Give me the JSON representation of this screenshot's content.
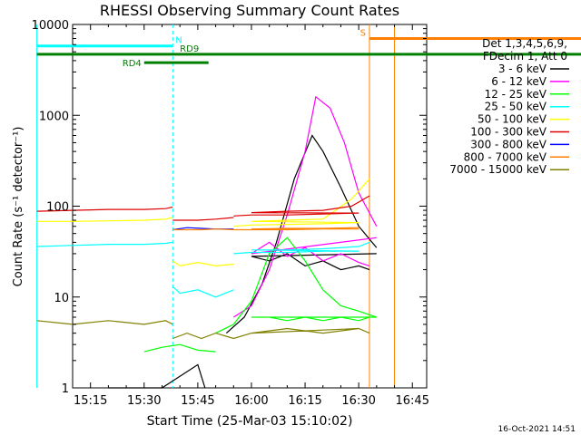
{
  "chart_data": {
    "type": "line",
    "title": "RHESSI Observing Summary Count Rates",
    "xlabel": "Start Time (25-Mar-03 15:10:02)",
    "ylabel": "Count Rate (s⁻¹ detector⁻¹)",
    "y_scale": "log",
    "ylim": [
      1,
      10000
    ],
    "xlim": [
      "15:10",
      "16:49"
    ],
    "x_ticks": [
      "15:15",
      "15:30",
      "15:45",
      "16:00",
      "16:15",
      "16:30",
      "16:45"
    ],
    "y_ticks": [
      "1",
      "10",
      "100",
      "1000",
      "10000"
    ],
    "grid": false,
    "legend_placement": "right",
    "legend_header": [
      "Det 1,3,4,5,6,9,",
      "FDecim 1, Att 0"
    ],
    "series": [
      {
        "name": "3 - 6 keV",
        "color": "#000000",
        "segments": [
          {
            "t": [
              15.2,
              15.35,
              15.45,
              15.47
            ],
            "y": [
              1,
              1,
              1.8,
              1
            ]
          },
          {
            "t": [
              15.53,
              15.58,
              15.63,
              15.67,
              15.72,
              15.77,
              15.8,
              15.85,
              15.9,
              15.95
            ],
            "y": [
              4,
              6,
              14,
              40,
              200,
              600,
              400,
              160,
              60,
              35
            ]
          },
          {
            "t": [
              15.95,
              16.0,
              16.05,
              16.1,
              16.15,
              16.2,
              16.25,
              16.3,
              16.33
            ],
            "y": [
              30,
              28,
              25,
              30,
              22,
              25,
              20,
              22,
              20
            ]
          },
          {
            "t": [
              27.0,
              27.2,
              27.4,
              27.6,
              27.8,
              28.0,
              28.2,
              28.4,
              28.6,
              28.8,
              29.0
            ],
            "y": [
              11,
              12,
              10,
              13,
              18,
              60,
              500,
              200,
              40,
              5,
              1
            ]
          }
        ]
      },
      {
        "name": "6 - 12 keV",
        "color": "#ff00ff",
        "segments": [
          {
            "t": [
              15.55,
              15.6,
              15.65,
              15.7,
              15.75,
              15.78,
              15.82,
              15.86,
              15.9,
              15.95
            ],
            "y": [
              6,
              8,
              20,
              80,
              400,
              1600,
              1200,
              500,
              140,
              60
            ]
          },
          {
            "t": [
              15.95,
              16.0,
              16.05,
              16.1,
              16.15,
              16.2,
              16.25,
              16.3,
              16.33
            ],
            "y": [
              45,
              30,
              40,
              28,
              35,
              25,
              30,
              24,
              22
            ]
          },
          {
            "t": [
              27.0,
              27.2,
              27.4,
              27.6,
              27.8,
              28.0,
              28.2,
              28.4,
              28.6,
              28.8
            ],
            "y": [
              12,
              13,
              12,
              16,
              30,
              200,
              900,
              300,
              60,
              14
            ]
          }
        ]
      },
      {
        "name": "12 - 25 keV",
        "color": "#00ff00",
        "segments": [
          {
            "t": [
              15.3,
              15.35,
              15.4,
              15.45,
              15.5
            ],
            "y": [
              2.5,
              2.8,
              3,
              2.6,
              2.5
            ]
          },
          {
            "t": [
              15.5,
              15.55,
              15.6,
              15.65,
              15.7,
              15.75,
              15.8,
              15.85,
              15.9,
              15.95,
              16.0,
              16.05,
              16.1,
              16.15,
              16.2,
              16.25,
              16.3,
              16.33
            ],
            "y": [
              4,
              5,
              9,
              30,
              45,
              25,
              12,
              8,
              7,
              6,
              6,
              6,
              5.5,
              6,
              5.5,
              6,
              5.5,
              6
            ]
          },
          {
            "t": [
              26.9,
              27.2,
              27.5,
              27.8,
              28.0,
              28.3,
              28.6,
              28.9,
              29.2,
              29.5,
              29.8,
              30.1,
              30.4,
              30.7,
              31.0,
              31.3,
              31.6,
              31.9,
              32.2,
              32.5
            ],
            "y": [
              7,
              6.5,
              7,
              6.5,
              7,
              7.5,
              8,
              30,
              12,
              6,
              6,
              5.5,
              6,
              5.5,
              5.8,
              5.6,
              5.8,
              5.5,
              5.7,
              5.5
            ]
          }
        ]
      },
      {
        "name": "25 - 50 keV",
        "color": "#00ffff",
        "segments": [
          {
            "t": [
              15.0,
              15.1,
              15.2,
              15.3,
              15.36,
              15.38
            ],
            "y": [
              36,
              37,
              38,
              38,
              39,
              40
            ]
          },
          {
            "t": [
              15.38,
              15.4,
              15.45,
              15.5,
              15.55
            ],
            "y": [
              13,
              11,
              12,
              10,
              12
            ]
          },
          {
            "t": [
              15.55,
              15.6,
              15.7,
              15.8,
              15.9,
              16.0,
              16.1,
              16.2,
              16.3,
              16.33
            ],
            "y": [
              30,
              31,
              31,
              32,
              32,
              33,
              33,
              34,
              36,
              40
            ]
          },
          {
            "t": [
              26.9,
              27.2,
              27.5,
              27.8,
              28.0,
              28.3,
              28.6,
              28.9,
              29.2,
              29.5,
              29.8,
              30.1,
              30.4,
              30.7,
              31.0,
              31.3,
              31.6,
              31.9,
              32.2,
              32.5
            ],
            "y": [
              55,
              50,
              45,
              42,
              40,
              38,
              36,
              34,
              34,
              33,
              33,
              33,
              32,
              32,
              32,
              32,
              31,
              31,
              31,
              31
            ]
          }
        ]
      },
      {
        "name": "50 - 100 keV",
        "color": "#ffff00",
        "segments": [
          {
            "t": [
              15.0,
              15.1,
              15.2,
              15.3,
              15.36,
              15.38
            ],
            "y": [
              68,
              68,
              69,
              70,
              72,
              75
            ]
          },
          {
            "t": [
              15.38,
              15.4,
              15.45,
              15.5,
              15.55
            ],
            "y": [
              25,
              22,
              24,
              22,
              23
            ]
          },
          {
            "t": [
              15.55,
              15.6,
              15.7,
              15.8,
              15.9,
              16.0,
              16.1,
              16.2,
              16.28,
              16.33
            ],
            "y": [
              60,
              62,
              63,
              64,
              66,
              68,
              70,
              72,
              120,
              200
            ]
          },
          {
            "t": [
              26.9,
              27.2,
              27.5,
              27.8,
              28.0,
              28.3,
              28.6,
              28.9,
              29.2,
              29.5,
              29.8,
              30.1,
              30.4,
              30.7,
              31.0,
              31.3,
              31.6,
              31.9,
              32.2,
              32.5
            ],
            "y": [
              95,
              90,
              85,
              80,
              78,
              75,
              72,
              70,
              70,
              68,
              68,
              67,
              67,
              66,
              66,
              66,
              65,
              65,
              65,
              65
            ]
          }
        ]
      },
      {
        "name": "100 - 300 keV",
        "color": "#dd0000",
        "segments": [
          {
            "t": [
              15.0,
              15.1,
              15.2,
              15.3,
              15.36,
              15.38
            ],
            "y": [
              88,
              90,
              92,
              92,
              94,
              98
            ]
          },
          {
            "t": [
              15.38,
              15.45,
              15.5,
              15.55
            ],
            "y": [
              70,
              70,
              72,
              75
            ]
          },
          {
            "t": [
              15.55,
              15.6,
              15.7,
              15.8,
              15.9,
              16.0,
              16.1,
              16.2,
              16.28,
              16.33
            ],
            "y": [
              78,
              80,
              80,
              82,
              84,
              85,
              88,
              90,
              100,
              130
            ]
          },
          {
            "t": [
              26.9,
              27.2,
              27.5,
              27.8,
              28.0,
              28.3,
              28.6,
              28.9,
              29.2,
              29.5,
              29.8,
              30.1,
              30.4,
              30.7,
              31.0,
              31.3,
              31.6,
              31.9,
              32.2,
              32.5
            ],
            "y": [
              130,
              122,
              115,
              110,
              105,
              100,
              98,
              95,
              92,
              90,
              88,
              86,
              85,
              84,
              84,
              83,
              83,
              82,
              82,
              82
            ]
          }
        ]
      },
      {
        "name": "300 - 800 keV",
        "color": "#0000ff",
        "segments": [
          {
            "t": [
              15.38,
              15.42,
              15.46,
              15.5,
              15.55
            ],
            "y": [
              55,
              58,
              57,
              56,
              56
            ]
          },
          {
            "t": [
              26.9,
              27.2,
              27.5,
              27.8,
              28.0,
              28.3,
              28.6,
              28.9,
              29.2,
              29.5,
              29.8
            ],
            "y": [
              82,
              78,
              75,
              72,
              70,
              68,
              66,
              64,
              63,
              62,
              60
            ]
          }
        ]
      },
      {
        "name": "800 - 7000 keV",
        "color": "#ff7f00",
        "segments": [
          {
            "t": [
              15.38,
              15.42,
              15.46,
              15.5,
              15.55,
              15.6,
              15.7,
              15.8,
              15.9,
              16.0,
              16.1,
              16.2,
              16.3
            ],
            "y": [
              55,
              55,
              55,
              56,
              55,
              55,
              55,
              56,
              56,
              56,
              57,
              57,
              58
            ]
          },
          {
            "t": [
              26.9,
              27.2,
              27.5,
              27.8,
              28.0,
              28.3,
              28.6,
              28.9,
              29.2,
              29.5,
              29.8,
              30.1,
              30.4,
              30.7,
              31.0,
              31.3,
              31.6,
              31.9,
              32.2,
              32.5
            ],
            "y": [
              75,
              72,
              70,
              68,
              66,
              65,
              63,
              62,
              61,
              60,
              59,
              58,
              58,
              57,
              57,
              57,
              56,
              56,
              56,
              56
            ]
          }
        ]
      },
      {
        "name": "7000 - 15000 keV",
        "color": "#808000",
        "segments": [
          {
            "t": [
              15.0,
              15.1,
              15.2,
              15.3,
              15.36,
              15.38
            ],
            "y": [
              5.5,
              5,
              5.5,
              5,
              5.5,
              5
            ]
          },
          {
            "t": [
              15.38,
              15.42,
              15.46,
              15.5,
              15.55,
              15.6,
              15.7,
              15.8,
              15.9,
              16.0,
              16.1,
              16.2,
              16.3,
              16.33
            ],
            "y": [
              3.5,
              4,
              3.5,
              4,
              3.5,
              4,
              4.5,
              4,
              4.5,
              4,
              4.5,
              4,
              4.5,
              4
            ]
          },
          {
            "t": [
              26.9,
              27.2,
              27.5,
              27.8,
              28.0,
              28.3,
              28.6,
              28.9,
              29.2,
              29.5,
              29.8,
              30.1,
              30.4,
              30.7,
              31.0,
              31.3,
              31.6,
              31.9,
              32.2,
              32.5
            ],
            "y": [
              4,
              4.5,
              4,
              4.5,
              4,
              4.5,
              4,
              4.5,
              4,
              5,
              4.5,
              5,
              4.5,
              5,
              4.5,
              5,
              5,
              5.5,
              5,
              5.5
            ]
          }
        ]
      }
    ],
    "flag_bars": [
      {
        "label": "N",
        "color": "#00ffff",
        "label_color": "#00ffff",
        "t0": 15.0,
        "t1": 15.38,
        "y": 5800
      },
      {
        "label": "N",
        "color": "#00ffff",
        "label_color": "#00ffff",
        "t0": 29.9,
        "t1": 32.5,
        "y": 5800
      },
      {
        "label": "RD9",
        "color": "#008000",
        "label_color": "#008000",
        "t0": 15.0,
        "t1": 32.5,
        "y": 4700
      },
      {
        "label": "RD4",
        "color": "#008000",
        "label_color": "#008000",
        "t0": 15.3,
        "t1": 15.48,
        "y": 3800
      },
      {
        "label": "S",
        "color": "#ff7f00",
        "label_color": "#ff7f00",
        "t0": 16.33,
        "t1": 17.55,
        "y": 7000
      }
    ],
    "vertical_lines": [
      {
        "t": 15.0,
        "color": "#00ffff",
        "style": "solid"
      },
      {
        "t": 15.38,
        "color": "#00ffff",
        "style": "dashed"
      },
      {
        "t": 16.33,
        "color": "#ff7f00",
        "style": "solid"
      },
      {
        "t": 16.4,
        "color": "#ff7f00",
        "style": "solid"
      },
      {
        "t": 17.55,
        "color": "#ff7f00",
        "style": "dashed"
      },
      {
        "t": 29.9,
        "color": "#00ffff",
        "style": "solid"
      },
      {
        "t": 32.5,
        "color": "#00ffff",
        "style": "dashed"
      }
    ]
  },
  "footer": {
    "timestamp": "16-Oct-2021 14:51"
  }
}
